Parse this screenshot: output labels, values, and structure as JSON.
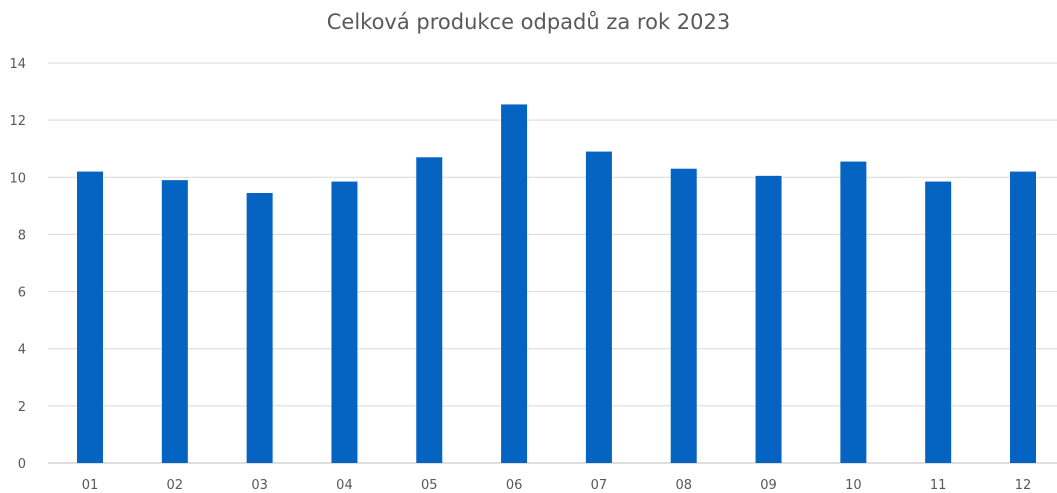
{
  "chart_data": {
    "type": "bar",
    "title": "Celková produkce odpadů za rok 2023",
    "xlabel": "",
    "ylabel": "",
    "categories": [
      "01",
      "02",
      "03",
      "04",
      "05",
      "06",
      "07",
      "08",
      "09",
      "10",
      "11",
      "12"
    ],
    "values": [
      10.2,
      9.9,
      9.45,
      9.85,
      10.7,
      12.55,
      10.9,
      10.3,
      10.05,
      10.55,
      9.85,
      10.2
    ],
    "ylim": [
      0,
      14
    ],
    "yticks": [
      "0",
      "2",
      "4",
      "6",
      "8",
      "10",
      "12",
      "14"
    ],
    "grid": true,
    "legend": "none",
    "colors": {
      "bar": "#0563C1",
      "grid": "#D9D9D9",
      "axis_line": "#BFBFBF",
      "text": "#595959"
    }
  }
}
